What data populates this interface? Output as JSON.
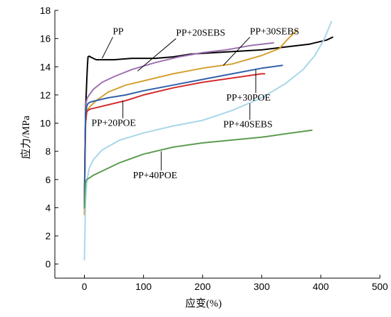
{
  "chart_data": {
    "type": "line",
    "xlabel": "应变(%)",
    "ylabel": "应力/MPa",
    "xlim": [
      -50,
      500
    ],
    "ylim": [
      -1,
      18
    ],
    "xticks": [
      0,
      100,
      200,
      300,
      400,
      500
    ],
    "yticks": [
      0,
      2,
      4,
      6,
      8,
      10,
      12,
      14,
      16,
      18
    ],
    "grid": false,
    "legend": "inline-labels",
    "series": [
      {
        "name": "PP",
        "color": "#000000",
        "x": [
          0,
          1,
          2,
          3,
          4,
          5,
          6,
          8,
          10,
          15,
          20,
          30,
          50,
          80,
          120,
          150,
          180,
          220,
          260,
          300,
          340,
          380,
          410,
          420
        ],
        "y": [
          4.0,
          8.0,
          11.0,
          12.0,
          13.0,
          14.0,
          14.7,
          14.75,
          14.7,
          14.6,
          14.5,
          14.5,
          14.5,
          14.6,
          14.6,
          14.7,
          14.9,
          15.0,
          15.1,
          15.2,
          15.4,
          15.6,
          15.9,
          16.1
        ]
      },
      {
        "name": "PP+20SEBS",
        "color": "#9d6fb0",
        "x": [
          0,
          1,
          2,
          3,
          5,
          8,
          15,
          30,
          50,
          80,
          120,
          160,
          200,
          240,
          280,
          300,
          320
        ],
        "y": [
          4.0,
          8.0,
          10.5,
          11.5,
          11.8,
          12.0,
          12.4,
          12.9,
          13.3,
          13.8,
          14.3,
          14.7,
          15.0,
          15.2,
          15.5,
          15.6,
          15.7
        ]
      },
      {
        "name": "PP+30SEBS",
        "color": "#d3a030",
        "x": [
          0,
          1,
          2,
          4,
          6,
          10,
          20,
          40,
          70,
          100,
          150,
          200,
          250,
          300,
          330,
          345,
          360
        ],
        "y": [
          3.5,
          7.5,
          10.0,
          10.8,
          11.0,
          11.2,
          11.6,
          12.2,
          12.7,
          13.0,
          13.5,
          13.9,
          14.2,
          14.8,
          15.3,
          16.0,
          16.6
        ]
      },
      {
        "name": "PP+40SEBS",
        "color": "#a8d6ea",
        "x": [
          0,
          1,
          2,
          4,
          8,
          15,
          30,
          60,
          100,
          150,
          200,
          250,
          300,
          340,
          370,
          390,
          405,
          418
        ],
        "y": [
          0.3,
          2.5,
          4.5,
          5.8,
          6.8,
          7.4,
          8.1,
          8.8,
          9.3,
          9.8,
          10.2,
          10.9,
          11.8,
          12.8,
          13.8,
          14.8,
          15.9,
          17.2
        ]
      },
      {
        "name": "PP+20POE",
        "color": "#d42a2a",
        "x": [
          0,
          1,
          2,
          4,
          6,
          10,
          20,
          40,
          70,
          100,
          150,
          200,
          250,
          300,
          305
        ],
        "y": [
          4.0,
          7.5,
          10.0,
          10.8,
          10.9,
          11.0,
          11.1,
          11.3,
          11.6,
          12.0,
          12.5,
          12.9,
          13.2,
          13.5,
          13.5
        ]
      },
      {
        "name": "PP+30POE",
        "color": "#2f5fa8",
        "x": [
          0,
          1,
          2,
          4,
          6,
          10,
          20,
          40,
          70,
          100,
          150,
          200,
          250,
          300,
          335
        ],
        "y": [
          4.0,
          8.0,
          10.5,
          11.2,
          11.4,
          11.5,
          11.6,
          11.8,
          12.0,
          12.3,
          12.7,
          13.1,
          13.5,
          13.9,
          14.1
        ]
      },
      {
        "name": "PP+40POE",
        "color": "#5a9a4e",
        "x": [
          0,
          1,
          2,
          4,
          8,
          15,
          30,
          60,
          100,
          150,
          200,
          250,
          300,
          350,
          385
        ],
        "y": [
          4.0,
          5.2,
          5.8,
          6.0,
          6.1,
          6.3,
          6.6,
          7.2,
          7.8,
          8.3,
          8.6,
          8.8,
          9.0,
          9.3,
          9.5
        ]
      }
    ],
    "annotations": [
      {
        "text": "PP",
        "x": 48,
        "y": 16.3,
        "point_x": 30,
        "point_y": 14.6
      },
      {
        "text": "PP+20SEBS",
        "x": 155,
        "y": 16.2,
        "point_x": 90,
        "point_y": 13.7
      },
      {
        "text": "PP+30SEBS",
        "x": 280,
        "y": 16.3,
        "point_x": 235,
        "point_y": 14.1
      },
      {
        "text": "PP+30POE",
        "x": 240,
        "y": 11.6,
        "point_x": 290,
        "point_y": 13.8
      },
      {
        "text": "PP+20POE",
        "x": 12,
        "y": 9.8,
        "point_x": 65,
        "point_y": 11.6
      },
      {
        "text": "PP+40SEBS",
        "x": 235,
        "y": 9.7,
        "point_x": 280,
        "point_y": 11.4
      },
      {
        "text": "PP+40POE",
        "x": 82,
        "y": 6.1,
        "point_x": 130,
        "point_y": 8.0
      }
    ]
  }
}
